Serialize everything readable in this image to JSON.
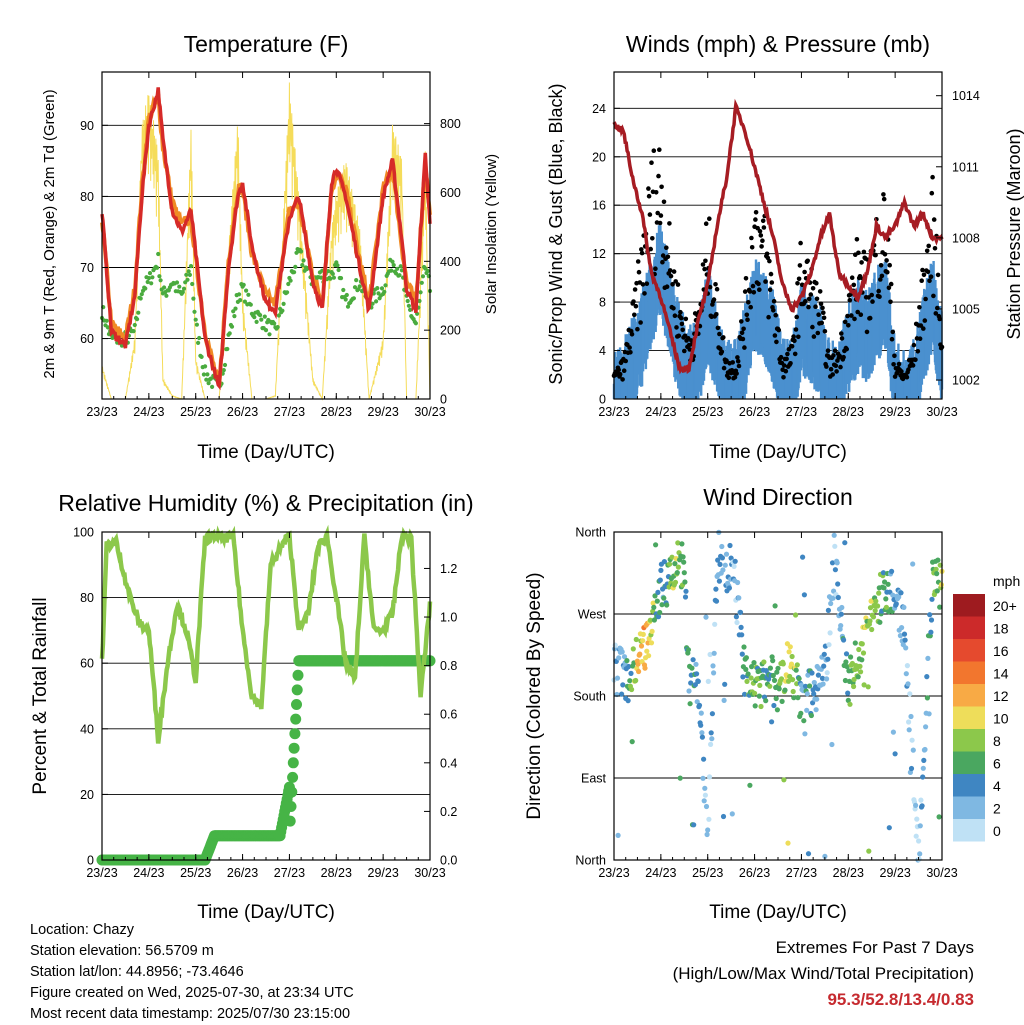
{
  "x_ticks": [
    "23/23",
    "24/23",
    "25/23",
    "26/23",
    "27/23",
    "28/23",
    "29/23",
    "30/23"
  ],
  "colors": {
    "t2m": "#f08a24",
    "t9m": "#d62a28",
    "td": "#4aab3e",
    "solar": "#f5dc5a",
    "gust": "#000000",
    "wind": "#4a90cf",
    "pressure": "#a61c23",
    "rh": "#8cc84b",
    "rain": "#46b446",
    "extremes": "#c62a2f"
  },
  "panels": {
    "temp": {
      "title": "Temperature (F)",
      "ylabel_left": "2m & 9m T (Red, Orange) & 2m Td (Green)",
      "ylabel_right": "Solar Insolation (Yellow)",
      "xlabel": "Time (Day/UTC)",
      "left_ticks": [
        "60",
        "70",
        "80",
        "90"
      ],
      "right_ticks": [
        "0",
        "200",
        "400",
        "600",
        "800"
      ]
    },
    "winds": {
      "title": "Winds (mph) & Pressure (mb)",
      "ylabel_left": "Sonic/Prop Wind & Gust (Blue, Black)",
      "ylabel_right": "Station Pressure (Maroon)",
      "xlabel": "Time (Day/UTC)",
      "left_ticks": [
        "0",
        "4",
        "8",
        "12",
        "16",
        "20",
        "24"
      ],
      "right_ticks": [
        "1002",
        "1005",
        "1008",
        "1011",
        "1014"
      ]
    },
    "rh": {
      "title": "Relative Humidity (%) & Precipitation (in)",
      "ylabel_left": "Percent & Total Rainfall",
      "xlabel": "Time (Day/UTC)",
      "left_ticks": [
        "0",
        "20",
        "40",
        "60",
        "80",
        "100"
      ],
      "right_ticks": [
        "0.0",
        "0.2",
        "0.4",
        "0.6",
        "0.8",
        "1.0",
        "1.2"
      ]
    },
    "dir": {
      "title": "Wind Direction",
      "ylabel_left": "Direction (Colored By Speed)",
      "xlabel": "Time (Day/UTC)",
      "left_ticks": [
        "North",
        "East",
        "South",
        "West",
        "North"
      ],
      "legend_title": "mph",
      "legend_labels": [
        "20+",
        "18",
        "16",
        "14",
        "12",
        "10",
        "8",
        "6",
        "4",
        "2",
        "0"
      ],
      "legend_colors": [
        "#9e1b1f",
        "#cc2a2a",
        "#e54a2e",
        "#f2762e",
        "#f8aa45",
        "#eedd5a",
        "#8cc84b",
        "#4aa760",
        "#3f86c2",
        "#7fb8e2",
        "#bfe1f5"
      ]
    }
  },
  "chart_data": [
    {
      "type": "line",
      "title": "Temperature (F)",
      "xlabel": "Time (Day/UTC)",
      "ylabel": "2m & 9m T (Red, Orange) & 2m Td (Green)",
      "y2label": "Solar Insolation (Yellow)",
      "x_days": [
        0,
        0.2,
        0.5,
        0.7,
        0.85,
        1.0,
        1.2,
        1.3,
        1.5,
        1.7,
        1.9,
        2.0,
        2.2,
        2.5,
        2.7,
        2.9,
        3.0,
        3.2,
        3.5,
        3.7,
        4.0,
        4.2,
        4.5,
        4.7,
        4.9,
        5.0,
        5.2,
        5.5,
        5.7,
        6.0,
        6.2,
        6.4,
        6.5,
        6.7,
        6.9,
        7.0
      ],
      "ylim": [
        51.5,
        97.5
      ],
      "y2lim": [
        0,
        950
      ],
      "series": [
        {
          "name": "9m T",
          "values": [
            78,
            61,
            59,
            66,
            80,
            90,
            95,
            88,
            78,
            75,
            78,
            72,
            60,
            53,
            70,
            80,
            82,
            73,
            65,
            64,
            77,
            80,
            68,
            64,
            82,
            84,
            80,
            70,
            64,
            80,
            85,
            74,
            67,
            64,
            86,
            76
          ]
        },
        {
          "name": "2m T",
          "values": [
            77,
            62,
            60,
            67,
            81,
            91,
            94,
            87,
            79,
            76,
            77,
            71,
            61,
            53,
            71,
            81,
            81,
            72,
            66,
            65,
            78,
            79,
            69,
            65,
            81,
            83,
            81,
            71,
            65,
            81,
            84,
            73,
            68,
            65,
            85,
            77
          ]
        },
        {
          "name": "2m Td",
          "values": [
            64,
            60,
            60,
            61,
            67,
            68,
            71,
            66,
            68,
            66,
            70,
            62,
            55,
            53,
            60,
            66,
            67,
            64,
            62,
            61,
            68,
            72,
            68,
            69,
            69,
            70,
            65,
            68,
            65,
            67,
            71,
            69,
            65,
            62,
            70,
            67
          ]
        },
        {
          "name": "Solar",
          "values": [
            100,
            0,
            0,
            180,
            800,
            900,
            720,
            60,
            10,
            0,
            800,
            120,
            0,
            0,
            440,
            820,
            300,
            0,
            0,
            10,
            920,
            600,
            60,
            0,
            500,
            600,
            700,
            500,
            0,
            180,
            800,
            700,
            0,
            0,
            720,
            0
          ]
        }
      ]
    },
    {
      "type": "line",
      "title": "Winds (mph) & Pressure (mb)",
      "xlabel": "Time (Day/UTC)",
      "ylabel": "Sonic/Prop Wind & Gust (Blue, Black)",
      "y2label": "Station Pressure (Maroon)",
      "x_days": [
        0,
        0.2,
        0.4,
        0.6,
        0.8,
        1.0,
        1.2,
        1.4,
        1.6,
        1.8,
        2.0,
        2.2,
        2.4,
        2.6,
        2.8,
        3.0,
        3.2,
        3.4,
        3.6,
        3.8,
        4.0,
        4.2,
        4.4,
        4.6,
        4.8,
        5.0,
        5.2,
        5.4,
        5.6,
        5.8,
        6.0,
        6.2,
        6.4,
        6.6,
        6.8,
        7.0
      ],
      "ylim": [
        0,
        27
      ],
      "y2lim": [
        1001.2,
        1015.0
      ],
      "series": [
        {
          "name": "Gust",
          "values": [
            2,
            3,
            7,
            12,
            18,
            20,
            12,
            8,
            5,
            7,
            14,
            8,
            3,
            3,
            8,
            16,
            14,
            9,
            3,
            4,
            12,
            10,
            8,
            3,
            4,
            8,
            12,
            10,
            14,
            16,
            3,
            2,
            4,
            10,
            16,
            6
          ]
        },
        {
          "name": "Wind",
          "values": [
            1,
            2,
            4,
            6,
            9,
            12,
            8,
            5,
            3,
            4,
            8,
            5,
            2,
            2,
            5,
            9,
            8,
            6,
            2,
            2,
            7,
            6,
            5,
            2,
            2,
            5,
            7,
            6,
            8,
            9,
            2,
            1,
            2,
            6,
            9,
            4
          ]
        },
        {
          "name": "Pressure",
          "values": [
            1012.8,
            1012.5,
            1010.5,
            1009.0,
            1006.5,
            1005.5,
            1004.0,
            1002.5,
            1002.5,
            1004.5,
            1006.0,
            1008.5,
            1010.5,
            1013.5,
            1012.5,
            1011.0,
            1009.5,
            1008.0,
            1006.0,
            1005.0,
            1005.5,
            1006.5,
            1008.0,
            1009.0,
            1006.5,
            1006.0,
            1005.5,
            1006.5,
            1008.5,
            1008.0,
            1008.5,
            1009.5,
            1008.5,
            1009.0,
            1008.0,
            1008.0
          ]
        }
      ]
    },
    {
      "type": "line",
      "title": "Relative Humidity (%) & Precipitation (in)",
      "xlabel": "Time (Day/UTC)",
      "ylabel": "Percent & Total Rainfall",
      "x_days": [
        0,
        0.1,
        0.3,
        0.6,
        0.8,
        1.0,
        1.2,
        1.4,
        1.6,
        1.8,
        2.0,
        2.2,
        2.4,
        2.6,
        2.8,
        3.0,
        3.2,
        3.4,
        3.6,
        3.8,
        4.0,
        4.2,
        4.4,
        4.6,
        4.8,
        5.0,
        5.2,
        5.4,
        5.6,
        5.8,
        6.0,
        6.2,
        6.4,
        6.6,
        6.8,
        7.0
      ],
      "ylim": [
        0,
        100
      ],
      "y2lim": [
        0,
        1.35
      ],
      "series": [
        {
          "name": "RH",
          "values": [
            60,
            96,
            97,
            80,
            72,
            70,
            37,
            60,
            78,
            70,
            55,
            98,
            99,
            98,
            99,
            70,
            50,
            47,
            90,
            95,
            99,
            70,
            75,
            95,
            99,
            80,
            60,
            55,
            99,
            70,
            70,
            75,
            99,
            98,
            50,
            78
          ]
        },
        {
          "name": "Total Rainfall",
          "values": [
            0,
            0,
            0,
            0,
            0,
            0,
            0,
            0,
            0,
            0,
            0,
            0,
            0.1,
            0.1,
            0.1,
            0.1,
            0.1,
            0.1,
            0.1,
            0.1,
            0.3,
            0.82,
            0.82,
            0.82,
            0.82,
            0.82,
            0.82,
            0.82,
            0.82,
            0.82,
            0.82,
            0.82,
            0.82,
            0.82,
            0.82,
            0.82
          ]
        }
      ]
    },
    {
      "type": "scatter",
      "title": "Wind Direction",
      "xlabel": "Time (Day/UTC)",
      "ylabel": "Direction (Colored By Speed)",
      "ylim": [
        0,
        360
      ],
      "x_days": [
        0,
        0.3,
        0.5,
        0.6,
        0.7,
        0.8,
        0.9,
        1.0,
        1.2,
        1.4,
        1.5,
        1.6,
        1.8,
        2.0,
        2.2,
        2.5,
        2.6,
        2.8,
        3.0,
        3.3,
        3.5,
        3.7,
        3.9,
        4.0,
        4.3,
        4.5,
        4.7,
        5.0,
        5.3,
        5.5,
        5.8,
        6.0,
        6.2,
        6.5,
        6.8,
        7.0
      ],
      "direction_deg": [
        210,
        200,
        220,
        230,
        240,
        260,
        280,
        300,
        310,
        330,
        320,
        200,
        190,
        10,
        330,
        320,
        300,
        200,
        190,
        200,
        190,
        210,
        200,
        170,
        190,
        200,
        330,
        190,
        240,
        280,
        290,
        300,
        250,
        0,
        310,
        300
      ],
      "speed": [
        2,
        4,
        10,
        11,
        12,
        9,
        5,
        4,
        7,
        8,
        6,
        4,
        3,
        2,
        3,
        3,
        2,
        6,
        7,
        5,
        6,
        9,
        7,
        4,
        3,
        2,
        2,
        6,
        8,
        8,
        6,
        3,
        2,
        1,
        5,
        8
      ]
    }
  ],
  "info": {
    "location": "Location: Chazy",
    "elevation": "Station elevation: 56.5709 m",
    "latlon": "Station lat/lon: 44.8956; -73.4646",
    "created": "Figure created on Wed, 2025-07-30, at 23:34 UTC",
    "recent": "Most recent data timestamp: 2025/07/30 23:15:00"
  },
  "extremes": {
    "heading": "Extremes For Past 7 Days",
    "subheading": "(High/Low/Max Wind/Total Precipitation)",
    "values": "95.3/52.8/13.4/0.83"
  }
}
